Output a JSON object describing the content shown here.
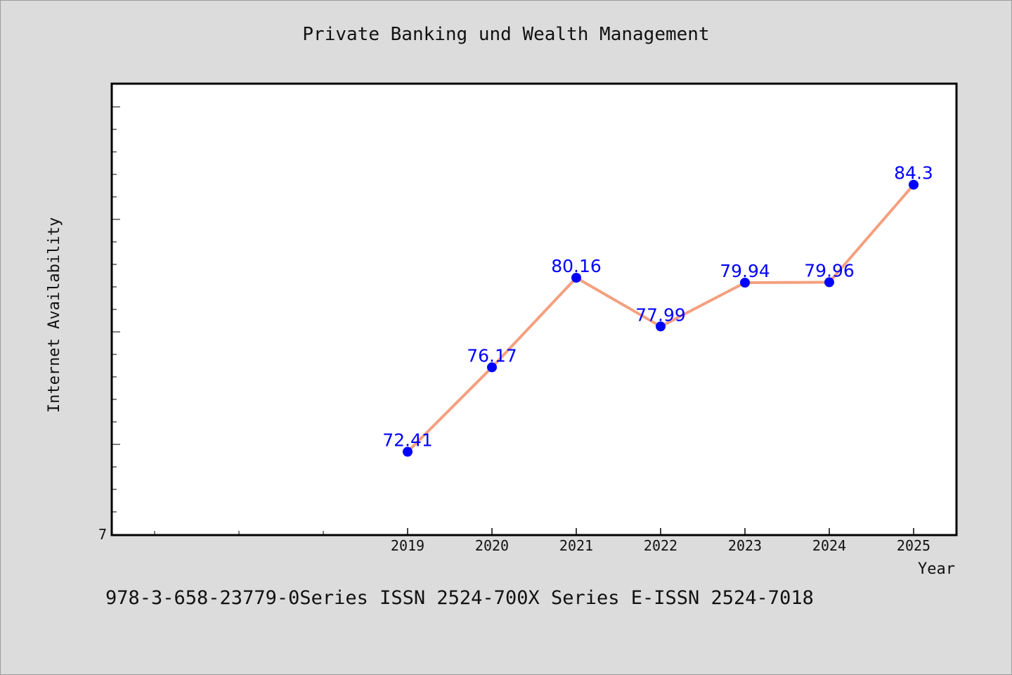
{
  "chart_data": {
    "type": "line",
    "title": "Private Banking und Wealth Management",
    "xlabel": "Year",
    "ylabel": "Internet Availability",
    "categories": [
      "2019",
      "2020",
      "2021",
      "2022",
      "2023",
      "2024",
      "2025"
    ],
    "series": [
      {
        "values": [
          72.41,
          76.17,
          80.16,
          77.99,
          79.94,
          79.96,
          84.3
        ],
        "data_labels": [
          "72.41",
          "76.17",
          "80.16",
          "77.99",
          "79.94",
          "79.96",
          "84.3"
        ]
      }
    ],
    "y_tick_labels": [
      "7"
    ],
    "ylim": [
      68.7,
      88.8
    ],
    "grid": false,
    "line_color": "#f4a07f",
    "marker_color": "#0000ff",
    "label_color": "#0000ff"
  },
  "footer_text": "978-3-658-23779-0Series ISSN 2524-700X Series E-ISSN 2524-7018"
}
